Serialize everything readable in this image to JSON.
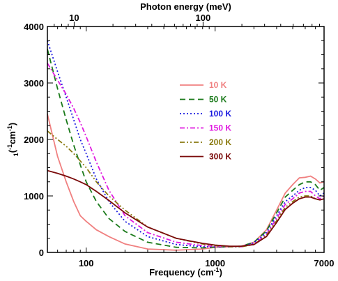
{
  "chart_data": {
    "type": "line",
    "xlabel": "Frequency (cm",
    "xlabel_sup": "-1",
    "xlabel_suffix": ")",
    "x2label": "Photon energy (meV)",
    "ylabel_prefix": "1",
    "ylabel_open": "(",
    "ylabel_sup": "-1",
    "ylabel_unit": "cm",
    "ylabel_sup2": "-1",
    "ylabel_close": ")",
    "xscale": "log",
    "xlim": [
      50,
      7000
    ],
    "ylim": [
      0,
      4000
    ],
    "xticks": [
      {
        "value": 100,
        "label": "100"
      },
      {
        "value": 1000,
        "label": "1000"
      },
      {
        "value": 7000,
        "label": "7000"
      }
    ],
    "x2ticks": [
      {
        "value": 10,
        "label": "10"
      },
      {
        "value": 100,
        "label": "100"
      }
    ],
    "yticks": [
      {
        "value": 0,
        "label": "0"
      },
      {
        "value": 1000,
        "label": "1000"
      },
      {
        "value": 2000,
        "label": "2000"
      },
      {
        "value": 3000,
        "label": "3000"
      },
      {
        "value": 4000,
        "label": "4000"
      }
    ],
    "legend_placement": "center-right",
    "series": [
      {
        "name": "10 K",
        "color": "#f08080",
        "dash": "solid",
        "x": [
          50,
          60,
          70,
          80,
          90,
          100,
          120,
          150,
          200,
          300,
          500,
          800,
          1000,
          1300,
          1600,
          2000,
          2500,
          3000,
          3500,
          4000,
          4500,
          5000,
          5500,
          6000,
          6500,
          7000
        ],
        "y": [
          2450,
          1700,
          1250,
          900,
          650,
          550,
          400,
          280,
          150,
          60,
          40,
          60,
          90,
          100,
          110,
          180,
          400,
          750,
          1050,
          1200,
          1320,
          1330,
          1350,
          1300,
          1230,
          1250
        ]
      },
      {
        "name": "50 K",
        "color": "#1a7a1a",
        "dash": "8,5",
        "x": [
          50,
          60,
          70,
          80,
          90,
          100,
          120,
          150,
          200,
          300,
          500,
          800,
          1000,
          1300,
          1600,
          2000,
          2500,
          3000,
          3500,
          4000,
          4500,
          5000,
          5500,
          6000,
          6500,
          7000
        ],
        "y": [
          3600,
          2900,
          2350,
          1900,
          1550,
          1250,
          900,
          600,
          370,
          180,
          90,
          80,
          95,
          100,
          110,
          180,
          380,
          700,
          980,
          1100,
          1200,
          1250,
          1250,
          1200,
          1100,
          1150
        ]
      },
      {
        "name": "100 K",
        "color": "#1a1ae0",
        "dash": "2,3",
        "x": [
          50,
          60,
          70,
          80,
          90,
          100,
          120,
          150,
          200,
          300,
          500,
          800,
          1000,
          1300,
          1600,
          2000,
          2500,
          3000,
          3500,
          4000,
          4500,
          5000,
          5500,
          6000,
          6500,
          7000
        ],
        "y": [
          3750,
          3200,
          2750,
          2350,
          2000,
          1750,
          1300,
          900,
          550,
          280,
          140,
          100,
          100,
          100,
          105,
          170,
          350,
          650,
          900,
          1000,
          1100,
          1150,
          1150,
          1100,
          1000,
          1050
        ]
      },
      {
        "name": "150 K",
        "color": "#e01ae0",
        "dash": "7,3,2,3",
        "x": [
          50,
          60,
          70,
          80,
          90,
          100,
          120,
          150,
          200,
          300,
          500,
          800,
          1000,
          1300,
          1600,
          2000,
          2500,
          3000,
          3500,
          4000,
          4500,
          5000,
          5500,
          6000,
          6500,
          7000
        ],
        "y": [
          3350,
          3050,
          2800,
          2550,
          2300,
          2050,
          1600,
          1100,
          650,
          350,
          180,
          120,
          110,
          100,
          100,
          150,
          320,
          600,
          850,
          950,
          1050,
          1080,
          1080,
          1000,
          950,
          1000
        ]
      },
      {
        "name": "200 K",
        "color": "#8a7a10",
        "dash": "7,3,2,3,2,3",
        "x": [
          50,
          60,
          70,
          80,
          90,
          100,
          120,
          150,
          200,
          300,
          500,
          800,
          1000,
          1300,
          1600,
          2000,
          2500,
          3000,
          3500,
          4000,
          4500,
          5000,
          5500,
          6000,
          6500,
          7000
        ],
        "y": [
          2150,
          2000,
          1880,
          1750,
          1620,
          1500,
          1250,
          1000,
          750,
          450,
          250,
          150,
          120,
          100,
          100,
          140,
          300,
          560,
          800,
          900,
          980,
          1000,
          1000,
          950,
          930,
          950
        ]
      },
      {
        "name": "300 K",
        "color": "#7a0a0a",
        "dash": "solid",
        "x": [
          50,
          60,
          70,
          80,
          90,
          100,
          120,
          150,
          200,
          300,
          500,
          800,
          1000,
          1300,
          1600,
          2000,
          2500,
          3000,
          3500,
          4000,
          4500,
          5000,
          5500,
          6000,
          6500,
          7000
        ],
        "y": [
          1450,
          1400,
          1350,
          1300,
          1250,
          1200,
          1080,
          920,
          700,
          450,
          250,
          160,
          130,
          110,
          110,
          140,
          280,
          530,
          760,
          870,
          950,
          980,
          980,
          950,
          930,
          950
        ]
      }
    ]
  }
}
